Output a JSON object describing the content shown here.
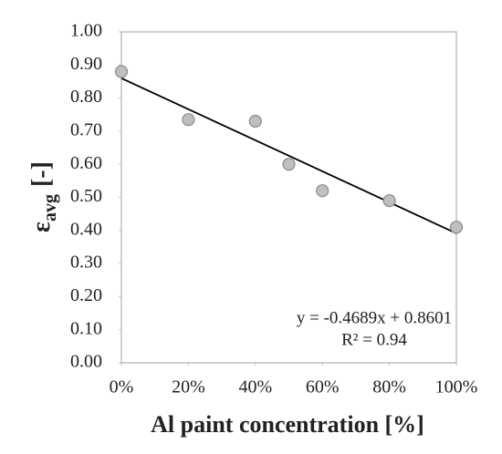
{
  "chart_data": {
    "type": "scatter",
    "x_label": "Al paint concentration [%]",
    "y_label": {
      "symbol": "ε",
      "subscript": "avg",
      "unit": "[-]"
    },
    "x": [
      0,
      0.2,
      0.4,
      0.5,
      0.6,
      0.8,
      1.0
    ],
    "values": [
      0.88,
      0.735,
      0.73,
      0.6,
      0.52,
      0.49,
      0.41
    ],
    "color": "#bfbfbf",
    "xlim": [
      0,
      1
    ],
    "xticks": [
      {
        "value": 0,
        "label": "0%"
      },
      {
        "value": 0.2,
        "label": "20%"
      },
      {
        "value": 0.4,
        "label": "40%"
      },
      {
        "value": 0.6,
        "label": "60%"
      },
      {
        "value": 0.8,
        "label": "80%"
      },
      {
        "value": 1,
        "label": "100%"
      }
    ],
    "ylim": [
      0,
      1
    ],
    "yticks": [
      {
        "value": 0,
        "label": "0.00"
      },
      {
        "value": 0.1,
        "label": "0.10"
      },
      {
        "value": 0.2,
        "label": "0.20"
      },
      {
        "value": 0.3,
        "label": "0.30"
      },
      {
        "value": 0.4,
        "label": "0.40"
      },
      {
        "value": 0.5,
        "label": "0.50"
      },
      {
        "value": 0.6,
        "label": "0.60"
      },
      {
        "value": 0.7,
        "label": "0.70"
      },
      {
        "value": 0.8,
        "label": "0.80"
      },
      {
        "value": 0.9,
        "label": "0.90"
      },
      {
        "value": 1,
        "label": "1.00"
      }
    ],
    "trendline": {
      "slope": -0.4689,
      "intercept": 0.8601,
      "equation": "y = -0.4689x + 0.8601",
      "r_squared": "R² = 0.94"
    }
  }
}
